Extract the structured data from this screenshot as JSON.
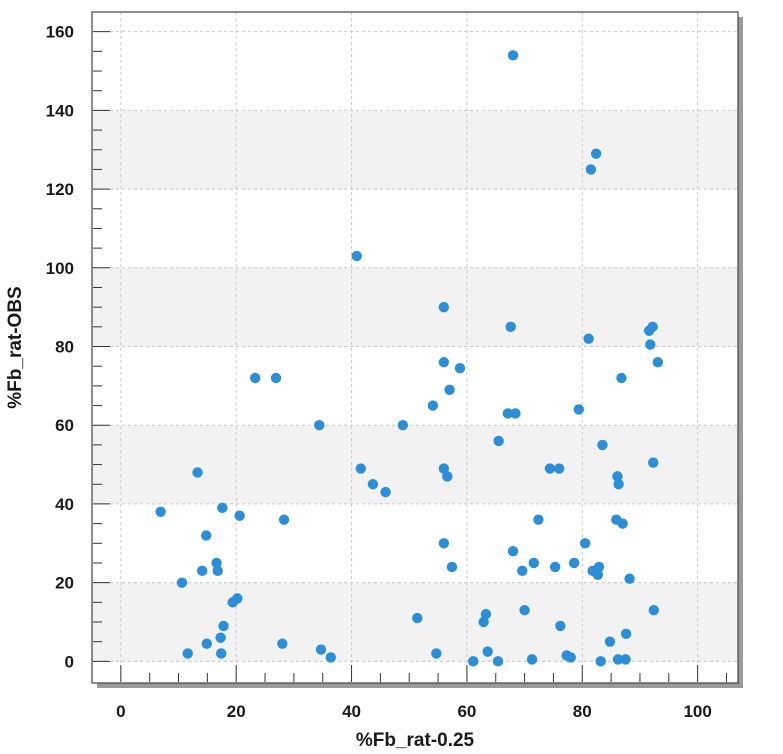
{
  "chart_data": {
    "type": "scatter",
    "xlabel": "%Fb_rat-0.25",
    "ylabel": "%Fb_rat-OBS",
    "xlim": [
      -5,
      107
    ],
    "ylim": [
      -5.5,
      165
    ],
    "x_ticks": [
      0,
      20,
      40,
      60,
      80,
      100
    ],
    "y_ticks": [
      0,
      20,
      40,
      60,
      80,
      100,
      120,
      140,
      160
    ],
    "x_tick_labels": [
      "0",
      "20",
      "40",
      "60",
      "80",
      "100"
    ],
    "y_tick_labels": [
      "0",
      "20",
      "40",
      "60",
      "80",
      "100",
      "120",
      "140",
      "160"
    ],
    "grid": true,
    "banded_background": true,
    "colors": {
      "marker": "#2a8fd8",
      "band": "#f2f2f2",
      "grid": "#c8c8c8",
      "frame": "#444444"
    },
    "series": [
      {
        "points": [
          [
            6.9,
            38
          ],
          [
            10.6,
            20
          ],
          [
            11.6,
            2
          ],
          [
            13.3,
            48
          ],
          [
            14.1,
            23
          ],
          [
            14.8,
            32
          ],
          [
            14.9,
            4.5
          ],
          [
            16.6,
            25
          ],
          [
            16.8,
            23
          ],
          [
            17.3,
            6
          ],
          [
            17.4,
            2
          ],
          [
            17.6,
            39
          ],
          [
            17.8,
            9
          ],
          [
            19.4,
            15
          ],
          [
            20.2,
            16
          ],
          [
            20.6,
            37
          ],
          [
            23.3,
            72
          ],
          [
            26.9,
            72
          ],
          [
            28.0,
            4.5
          ],
          [
            28.3,
            36
          ],
          [
            34.4,
            60
          ],
          [
            34.7,
            3
          ],
          [
            36.4,
            1
          ],
          [
            40.9,
            103
          ],
          [
            41.6,
            49
          ],
          [
            43.7,
            45
          ],
          [
            45.9,
            43
          ],
          [
            48.9,
            60
          ],
          [
            51.4,
            11
          ],
          [
            54.1,
            65
          ],
          [
            54.7,
            2
          ],
          [
            56.0,
            90
          ],
          [
            56.0,
            76
          ],
          [
            56.0,
            49
          ],
          [
            56.0,
            30
          ],
          [
            56.6,
            47
          ],
          [
            57.0,
            69
          ],
          [
            57.4,
            24
          ],
          [
            58.8,
            74.5
          ],
          [
            61.1,
            0
          ],
          [
            62.9,
            10
          ],
          [
            63.3,
            12
          ],
          [
            63.6,
            2.5
          ],
          [
            65.4,
            0
          ],
          [
            65.5,
            56
          ],
          [
            67.1,
            63
          ],
          [
            67.6,
            85
          ],
          [
            68.0,
            154
          ],
          [
            68.0,
            28
          ],
          [
            68.4,
            63
          ],
          [
            69.6,
            23
          ],
          [
            70.0,
            13
          ],
          [
            71.3,
            0.5
          ],
          [
            71.6,
            25
          ],
          [
            72.4,
            36
          ],
          [
            74.4,
            49
          ],
          [
            75.3,
            24
          ],
          [
            76.0,
            49
          ],
          [
            76.2,
            9
          ],
          [
            77.3,
            1.5
          ],
          [
            78.0,
            1
          ],
          [
            78.6,
            25
          ],
          [
            79.4,
            64
          ],
          [
            80.5,
            30
          ],
          [
            81.1,
            82
          ],
          [
            81.5,
            125
          ],
          [
            81.8,
            23
          ],
          [
            82.4,
            129
          ],
          [
            82.7,
            22
          ],
          [
            82.9,
            24
          ],
          [
            83.2,
            0
          ],
          [
            83.5,
            55
          ],
          [
            84.8,
            5
          ],
          [
            85.9,
            36
          ],
          [
            86.1,
            47
          ],
          [
            86.2,
            0.5
          ],
          [
            86.3,
            45
          ],
          [
            86.8,
            72
          ],
          [
            87.0,
            35
          ],
          [
            87.5,
            0.5
          ],
          [
            87.6,
            7
          ],
          [
            88.2,
            21
          ],
          [
            91.6,
            84
          ],
          [
            91.8,
            80.5
          ],
          [
            92.2,
            85
          ],
          [
            92.3,
            50.5
          ],
          [
            92.4,
            13
          ],
          [
            93.1,
            76
          ]
        ]
      }
    ]
  }
}
